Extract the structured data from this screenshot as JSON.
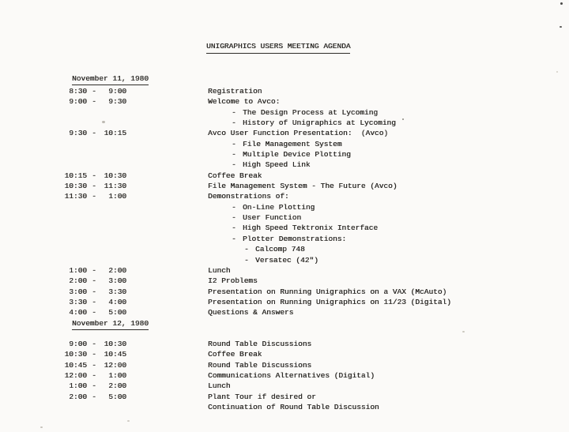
{
  "doc": {
    "title": "UNIGRAPHICS USERS MEETING AGENDA",
    "time_separator": "-",
    "bullet_char": "-"
  },
  "colors": {
    "paper": "#fbfaf8",
    "ink": "#2e2c29"
  },
  "days": [
    {
      "heading": "November 11, 1980",
      "rows": [
        {
          "start": "8:30",
          "end": "9:00",
          "text": "Registration",
          "indent": 0
        },
        {
          "start": "9:00",
          "end": "9:30",
          "text": "Welcome to Avco:",
          "indent": 0
        },
        {
          "text": "The Design Process at Lycoming",
          "indent": 1
        },
        {
          "text": "History of Unigraphics at Lycoming",
          "indent": 1
        },
        {
          "start": "9:30",
          "end": "10:15",
          "text": "Avco User Function Presentation:  (Avco)",
          "indent": 0
        },
        {
          "text": "File Management System",
          "indent": 1
        },
        {
          "text": "Multiple Device Plotting",
          "indent": 1
        },
        {
          "text": "High Speed Link",
          "indent": 1
        },
        {
          "start": "10:15",
          "end": "10:30",
          "text": "Coffee Break",
          "indent": 0
        },
        {
          "start": "10:30",
          "end": "11:30",
          "text": "File Management System - The Future (Avco)",
          "indent": 0
        },
        {
          "start": "11:30",
          "end": "1:00",
          "text": "Demonstrations of:",
          "indent": 0
        },
        {
          "text": "On-Line Plotting",
          "indent": 1
        },
        {
          "text": "User Function",
          "indent": 1
        },
        {
          "text": "High Speed Tektronix Interface",
          "indent": 1
        },
        {
          "text": "Plotter Demonstrations:",
          "indent": 1
        },
        {
          "text": "Calcomp 748",
          "indent": 2
        },
        {
          "text": "Versatec (42\")",
          "indent": 2
        },
        {
          "start": "1:00",
          "end": "2:00",
          "text": "Lunch",
          "indent": 0
        },
        {
          "start": "2:00",
          "end": "3:00",
          "text": "I2 Problems",
          "indent": 0
        },
        {
          "start": "3:00",
          "end": "3:30",
          "text": "Presentation on Running Unigraphics on a VAX (McAuto)",
          "indent": 0
        },
        {
          "start": "3:30",
          "end": "4:00",
          "text": "Presentation on Running Unigraphics on 11/23 (Digital)",
          "indent": 0
        },
        {
          "start": "4:00",
          "end": "5:00",
          "text": "Questions & Answers",
          "indent": 0
        }
      ]
    },
    {
      "heading": "November 12, 1980",
      "rows": [
        {
          "start": "9:00",
          "end": "10:30",
          "text": "Round Table Discussions",
          "indent": 0
        },
        {
          "start": "10:30",
          "end": "10:45",
          "text": "Coffee Break",
          "indent": 0
        },
        {
          "start": "10:45",
          "end": "12:00",
          "text": "Round Table Discussions",
          "indent": 0
        },
        {
          "start": "12:00",
          "end": "1:00",
          "text": "Communications Alternatives (Digital)",
          "indent": 0
        },
        {
          "start": "1:00",
          "end": "2:00",
          "text": "Lunch",
          "indent": 0
        },
        {
          "start": "2:00",
          "end": "5:00",
          "text": "Plant Tour if desired or",
          "indent": 0
        },
        {
          "text": "Continuation of Round Table Discussion",
          "indent": 0
        }
      ]
    }
  ]
}
